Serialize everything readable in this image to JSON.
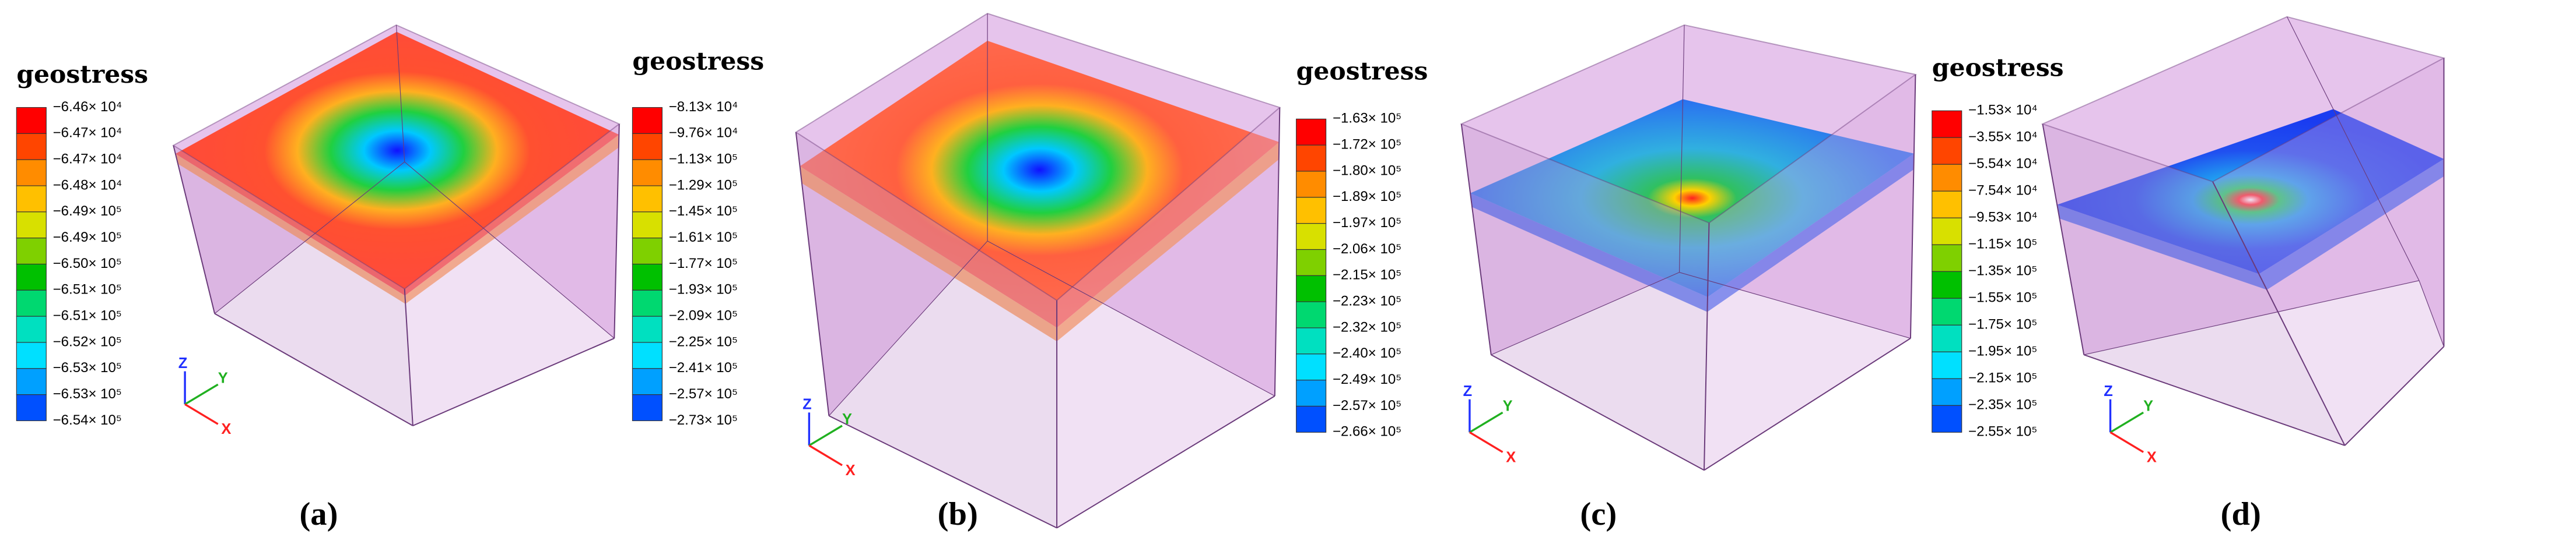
{
  "panels": [
    {
      "legend_title": "geostress",
      "legend_labels": [
        "−6.46× 10⁴",
        "−6.47× 10⁴",
        "−6.47× 10⁴",
        "−6.48× 10⁴",
        "−6.49× 10⁵",
        "−6.49× 10⁵",
        "−6.50× 10⁵",
        "−6.51× 10⁵",
        "−6.51× 10⁵",
        "−6.52× 10⁵",
        "−6.53× 10⁵",
        "−6.53× 10⁵",
        "−6.54× 10⁵"
      ],
      "axes": {
        "z": "Z",
        "y": "Y",
        "x": "X"
      },
      "caption": "(a)"
    },
    {
      "legend_title": "geostress",
      "legend_labels": [
        "−8.13× 10⁴",
        "−9.76× 10⁴",
        "−1.13× 10⁵",
        "−1.29× 10⁵",
        "−1.45× 10⁵",
        "−1.61× 10⁵",
        "−1.77× 10⁵",
        "−1.93× 10⁵",
        "−2.09× 10⁵",
        "−2.25× 10⁵",
        "−2.41× 10⁵",
        "−2.57× 10⁵",
        "−2.73× 10⁵"
      ],
      "axes": {
        "z": "Z",
        "y": "Y",
        "x": "X"
      },
      "caption": "(b)"
    },
    {
      "legend_title": "geostress",
      "legend_labels": [
        "−1.63× 10⁵",
        "−1.72× 10⁵",
        "−1.80× 10⁵",
        "−1.89× 10⁵",
        "−1.97× 10⁵",
        "−2.06× 10⁵",
        "−2.15× 10⁵",
        "−2.23× 10⁵",
        "−2.32× 10⁵",
        "−2.40× 10⁵",
        "−2.49× 10⁵",
        "−2.57× 10⁵",
        "−2.66× 10⁵"
      ],
      "axes": {
        "z": "Z",
        "y": "Y",
        "x": "X"
      },
      "caption": "(c)"
    },
    {
      "legend_title": "geostress",
      "legend_labels": [
        "−1.53× 10⁴",
        "−3.55× 10⁴",
        "−5.54× 10⁴",
        "−7.54× 10⁴",
        "−9.53× 10⁴",
        "−1.15× 10⁵",
        "−1.35× 10⁵",
        "−1.55× 10⁵",
        "−1.75× 10⁵",
        "−1.95× 10⁵",
        "−2.15× 10⁵",
        "−2.35× 10⁵",
        "−2.55× 10⁵"
      ],
      "axes": {
        "z": "Z",
        "y": "Y",
        "x": "X"
      },
      "caption": "(d)"
    }
  ]
}
